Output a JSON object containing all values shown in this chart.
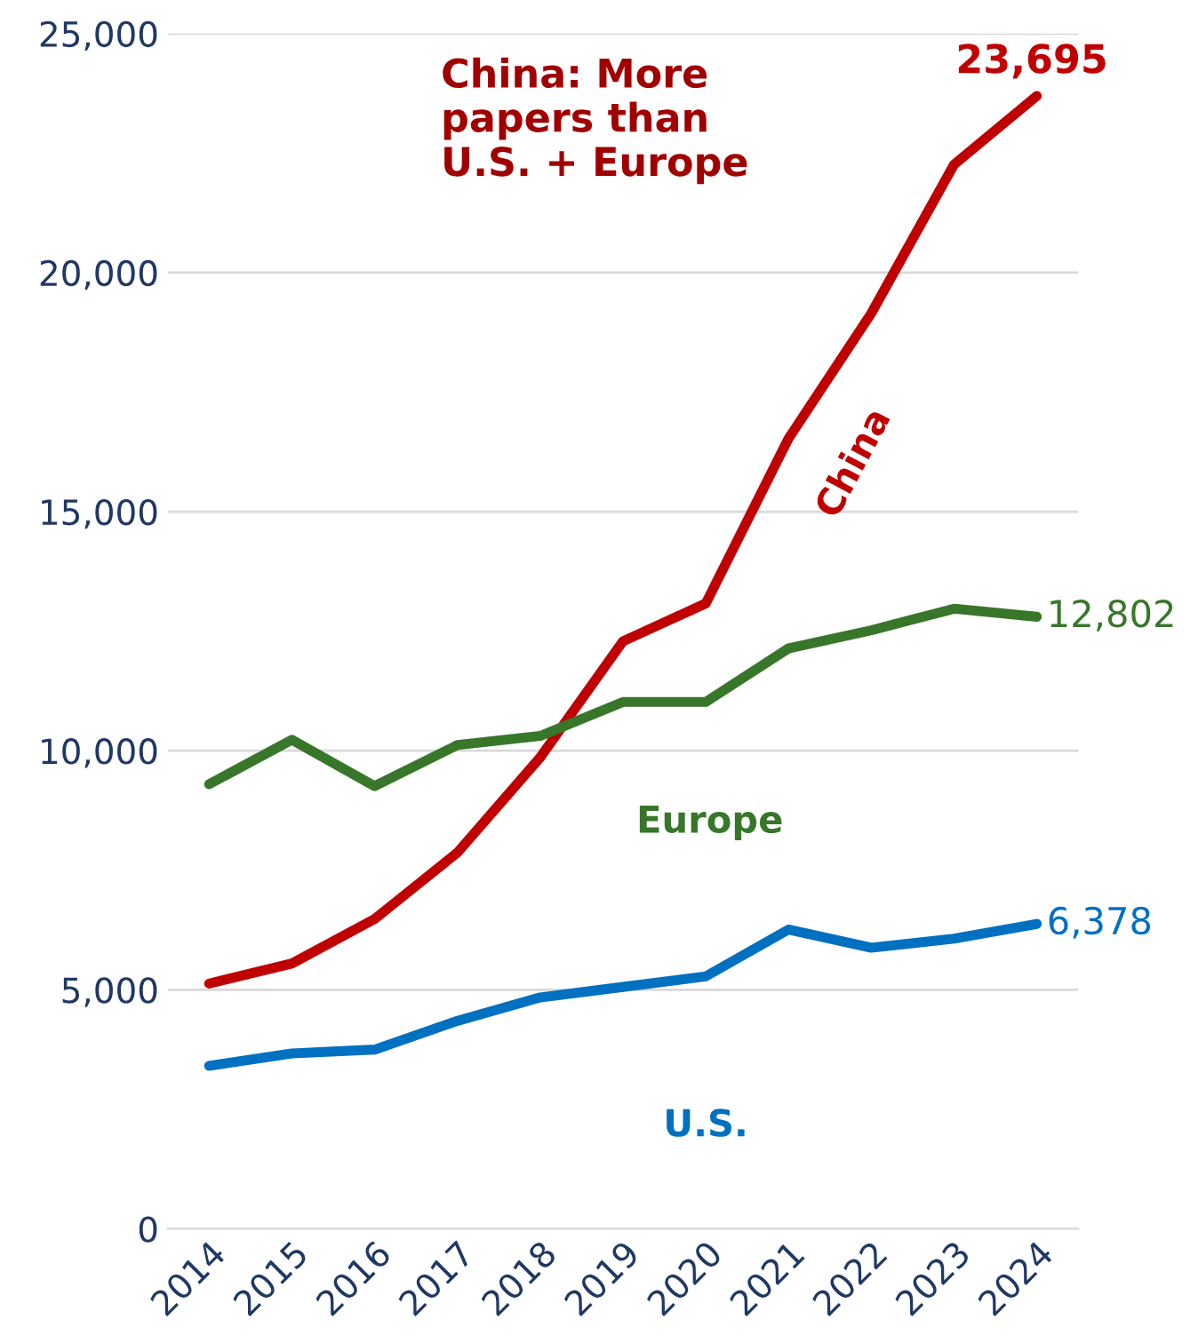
{
  "chart_data": {
    "type": "line",
    "categories": [
      "2014",
      "2015",
      "2016",
      "2017",
      "2018",
      "2019",
      "2020",
      "2021",
      "2022",
      "2023",
      "2024"
    ],
    "series": [
      {
        "name": "China",
        "color": "#c00000",
        "values": [
          5130,
          5550,
          6480,
          7870,
          9860,
          12290,
          13080,
          16530,
          19150,
          22260,
          23695
        ],
        "value_labels": [
          null,
          null,
          null,
          null,
          null,
          null,
          null,
          null,
          null,
          null,
          "23,695"
        ]
      },
      {
        "name": "Europe",
        "color": "#38772a",
        "values": [
          9300,
          10230,
          9260,
          10120,
          10310,
          11020,
          11020,
          12140,
          12520,
          12970,
          12802
        ],
        "value_labels": [
          null,
          null,
          null,
          null,
          null,
          null,
          null,
          null,
          null,
          null,
          "12,802"
        ]
      },
      {
        "name": "U.S.",
        "color": "#0070c0",
        "values": [
          3410,
          3670,
          3750,
          4350,
          4840,
          5060,
          5280,
          6260,
          5880,
          6070,
          6378
        ],
        "value_labels": [
          null,
          null,
          null,
          null,
          null,
          null,
          null,
          null,
          null,
          null,
          "6,378"
        ]
      }
    ],
    "ylim": [
      0,
      25000
    ],
    "yticks": [
      0,
      {
        "value": 5000,
        "label": "5,000"
      },
      {
        "value": 10000,
        "label": "10,000"
      },
      {
        "value": 15000,
        "label": "15,000"
      },
      {
        "value": 20000,
        "label": "20,000"
      },
      {
        "value": 25000,
        "label": "25,000"
      }
    ],
    "grid": "y",
    "legend": false,
    "marker": "none",
    "line_style": "solid",
    "annotations": [
      "China: More\npapers than\nU.S. + Europe"
    ]
  }
}
